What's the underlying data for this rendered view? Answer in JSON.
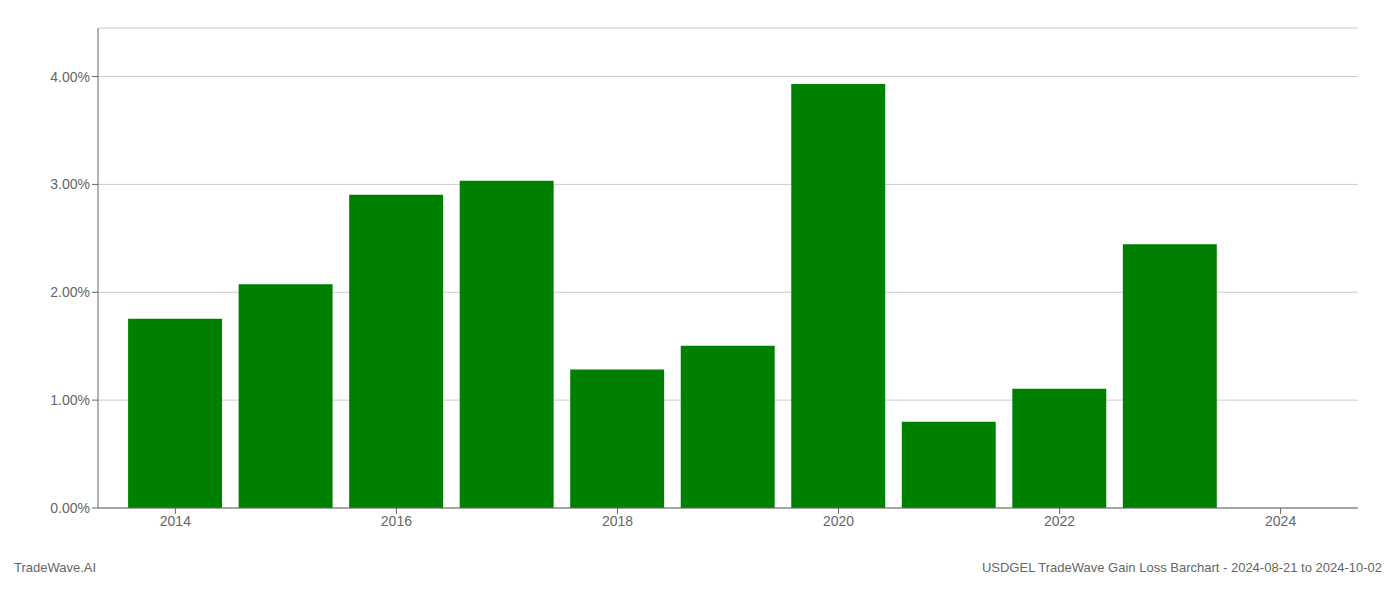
{
  "chart_data": {
    "type": "bar",
    "title": "USDGEL TradeWave Gain Loss Barchart - 2024-08-21 to 2024-10-02",
    "annotations": [
      "TradeWave.AI"
    ],
    "x": [
      2014,
      2015,
      2016,
      2017,
      2018,
      2019,
      2020,
      2021,
      2022,
      2023
    ],
    "values": [
      0.01755,
      0.02075,
      0.02905,
      0.03035,
      0.01285,
      0.01505,
      0.0393,
      0.008,
      0.01105,
      0.02445
    ],
    "color": "#008000",
    "xlim": [
      2013.3,
      2024.7
    ],
    "xticks": [
      2014,
      2016,
      2018,
      2020,
      2022,
      2024
    ],
    "ylim": [
      0,
      0.0445
    ],
    "yticks": [
      {
        "value": 0.0,
        "label": "0.00%"
      },
      {
        "value": 0.01,
        "label": "1.00%"
      },
      {
        "value": 0.02,
        "label": "2.00%"
      },
      {
        "value": 0.03,
        "label": "3.00%"
      },
      {
        "value": 0.04,
        "label": "4.00%"
      }
    ],
    "grid": true
  }
}
